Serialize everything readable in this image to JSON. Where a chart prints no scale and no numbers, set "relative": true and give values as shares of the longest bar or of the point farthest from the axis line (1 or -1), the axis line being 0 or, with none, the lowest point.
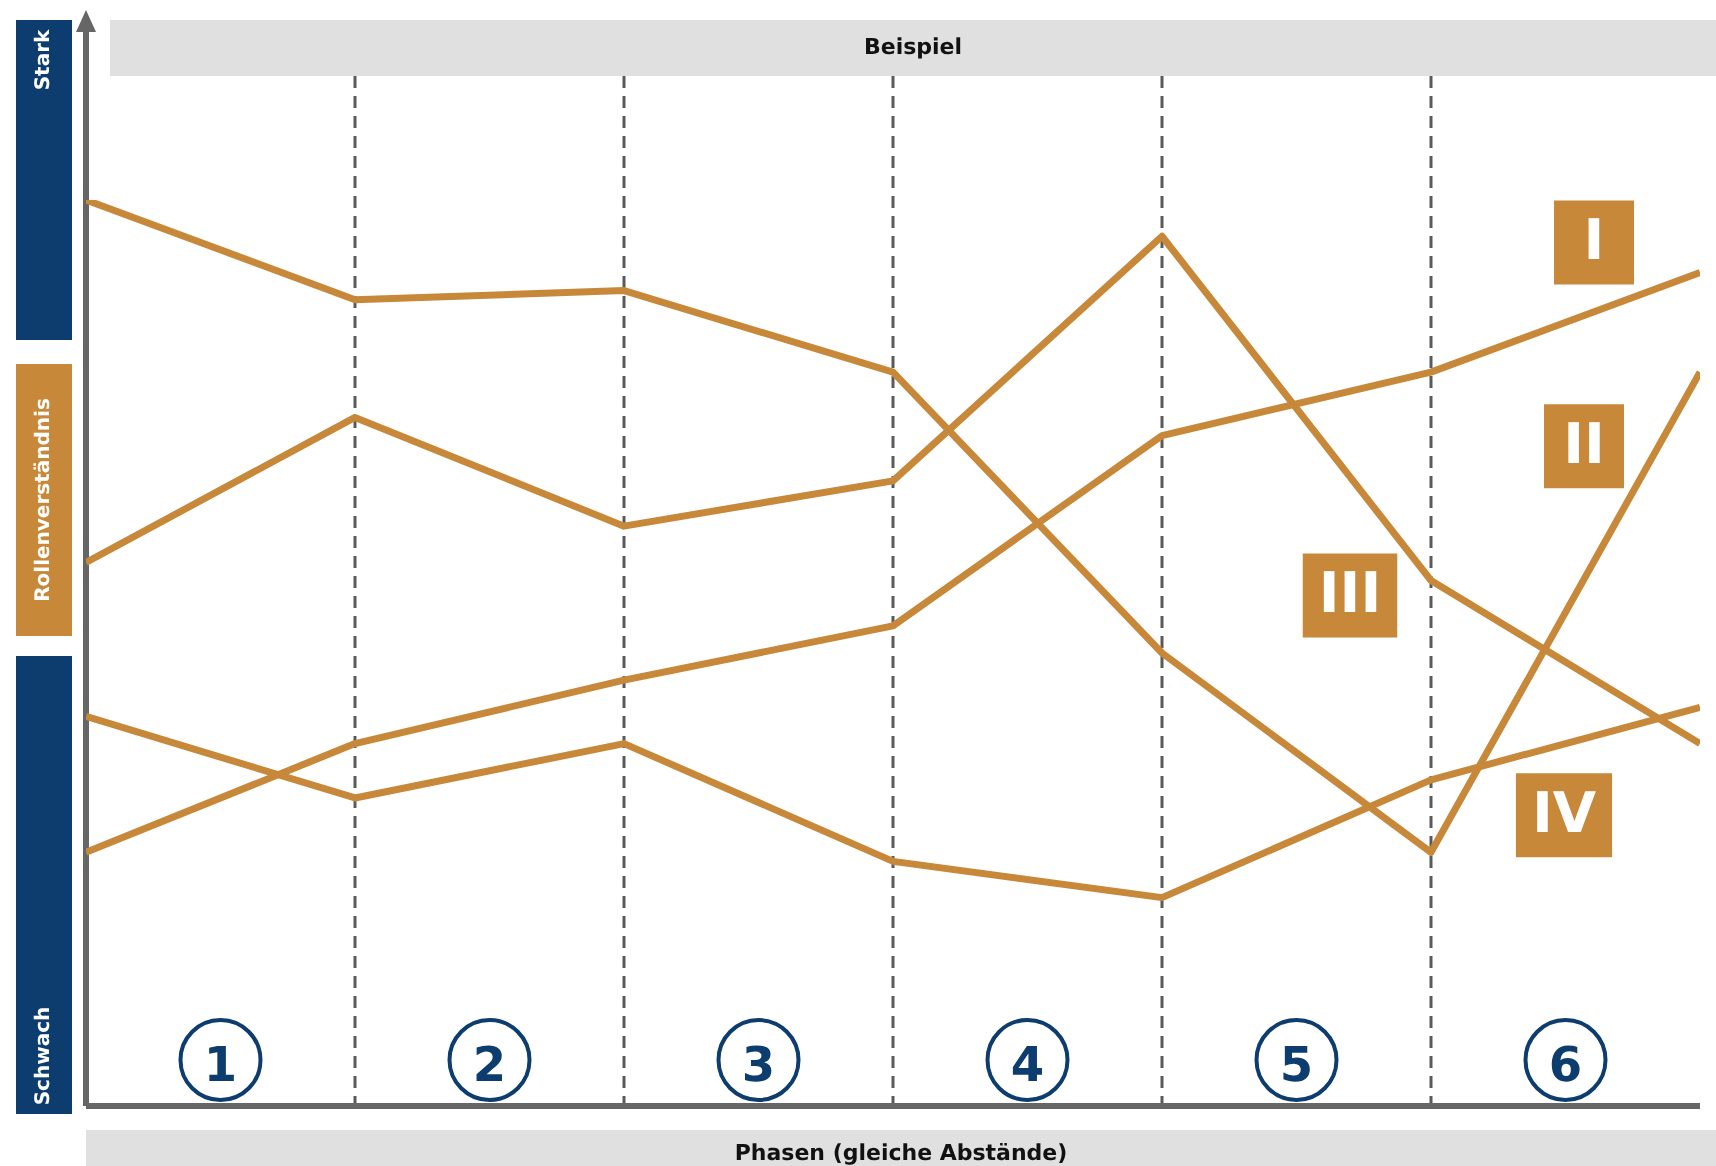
{
  "chart_data": {
    "type": "line",
    "title": "Beispiel",
    "xlabel": "Phasen (gleiche Abstände)",
    "ylabel": "Rollenverständnis",
    "annotations": [
      "Stark",
      "Schwach"
    ],
    "relative": true,
    "x": [
      0,
      1,
      2,
      3,
      4,
      5,
      6
    ],
    "xlim": [
      0,
      6
    ],
    "xticks": [
      {
        "value": 0.5,
        "label": "1"
      },
      {
        "value": 1.5,
        "label": "2"
      },
      {
        "value": 2.5,
        "label": "3"
      },
      {
        "value": 3.5,
        "label": "4"
      },
      {
        "value": 4.5,
        "label": "5"
      },
      {
        "value": 5.5,
        "label": "6"
      }
    ],
    "series": [
      {
        "name": "I",
        "color": "#c8883a",
        "values": [
          0.28,
          0.4,
          0.47,
          0.53,
          0.74,
          0.81,
          0.92
        ]
      },
      {
        "name": "II",
        "color": "#c8883a",
        "values": [
          1,
          0.89,
          0.9,
          0.81,
          0.5,
          0.28,
          0.81
        ]
      },
      {
        "name": "III",
        "color": "#c8883a",
        "values": [
          0.6,
          0.76,
          0.64,
          0.69,
          0.96,
          0.58,
          0.4
        ]
      },
      {
        "name": "IV",
        "color": "#c8883a",
        "values": [
          0.43,
          0.34,
          0.4,
          0.27,
          0.23,
          0.36,
          0.44
        ]
      }
    ],
    "ref_lines": [
      {
        "axis": "x",
        "value": 1,
        "color": "#5a5a5a",
        "line_style": "dashed"
      },
      {
        "axis": "x",
        "value": 2,
        "color": "#5a5a5a",
        "line_style": "dashed"
      },
      {
        "axis": "x",
        "value": 3,
        "color": "#5a5a5a",
        "line_style": "dashed"
      },
      {
        "axis": "x",
        "value": 4,
        "color": "#5a5a5a",
        "line_style": "dashed"
      },
      {
        "axis": "x",
        "value": 5,
        "color": "#5a5a5a",
        "line_style": "dashed"
      }
    ],
    "grid": false,
    "legend": false,
    "marker": "none",
    "line_style": "solid",
    "tick_labels": "x"
  }
}
